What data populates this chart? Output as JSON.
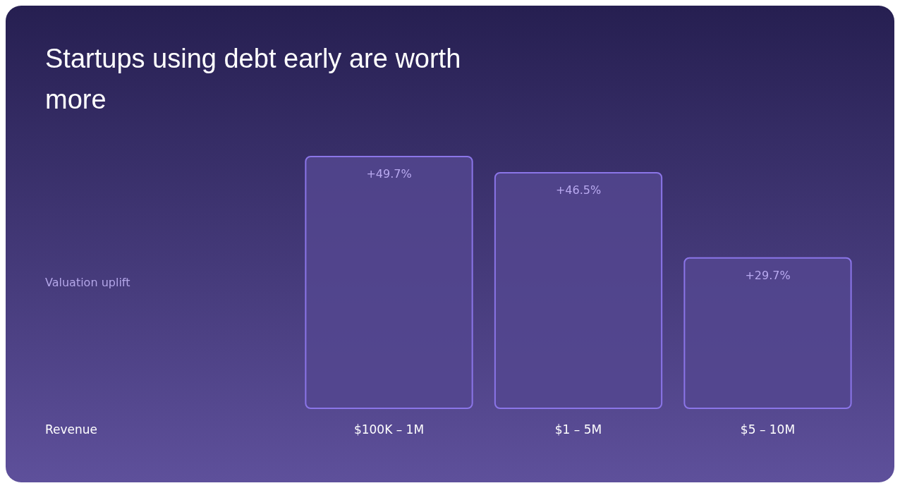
{
  "chart_data": {
    "type": "bar",
    "title": "Startups using debt early are worth more",
    "annotations": [
      "Valuation uplift",
      "Revenue"
    ],
    "categories": [
      "$100K – 1M",
      "$1 – 5M",
      "$5 – 10M"
    ],
    "values": [
      49.7,
      46.5,
      29.7
    ],
    "value_labels": [
      "+49.7%",
      "+46.5%",
      "+29.7%"
    ],
    "color": "#54468f"
  }
}
